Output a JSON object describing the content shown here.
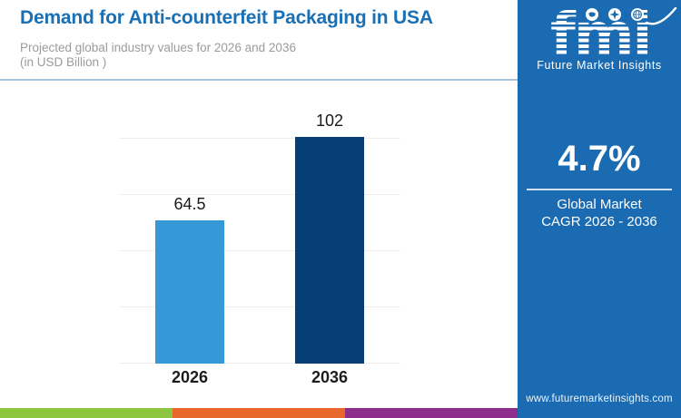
{
  "header": {
    "title": "Demand for Anti-counterfeit Packaging in USA",
    "subtitle_line1": "Projected global industry values for 2026 and 2036",
    "subtitle_line2": "(in USD Billion )"
  },
  "chart_data": {
    "type": "bar",
    "title": "Demand for Anti-counterfeit Packaging in USA",
    "subtitle": "Projected global industry values for 2026 and 2036 (in USD Billion)",
    "categories": [
      "2026",
      "2036"
    ],
    "values": [
      64.5,
      102
    ],
    "value_labels": [
      "64.5",
      "102"
    ],
    "xlabel": "",
    "ylabel": "",
    "unit": "USD Billion",
    "ylim": [
      0,
      105
    ],
    "grid": true,
    "ytick_labels_visible": false,
    "legend": false,
    "bar_colors": [
      "#3598d7",
      "#063e76"
    ]
  },
  "sidebar": {
    "background": "#1a6bb2",
    "logo": {
      "text": "fmi",
      "tagline": "Future Market Insights",
      "icons": [
        "map-icon",
        "compass-icon",
        "globe-icon"
      ]
    },
    "stat": {
      "value": "4.7%",
      "label_line1": "Global Market",
      "label_line2": "CAGR 2026 - 2036"
    },
    "website": "www.futuremarketinsights.com"
  },
  "footer_stripe_colors": [
    "#8cc63f",
    "#e8672a",
    "#8d2e8d"
  ]
}
